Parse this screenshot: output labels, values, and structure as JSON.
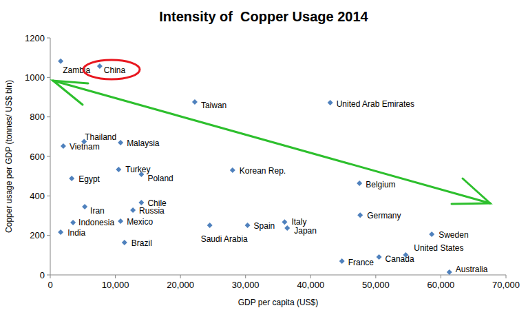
{
  "chart_data": {
    "type": "scatter",
    "title": "Intensity of  Copper Usage 2014",
    "x_label": "GDP per capita (US$)",
    "y_label": "Copper usage per GDP (tonnes/ US$ bln)",
    "color": "#4f81bd",
    "marker": "diamond",
    "grid": false,
    "xlim": [
      0,
      70000
    ],
    "ylim": [
      0,
      1200
    ],
    "xticks": [
      0,
      {
        "value": 10000,
        "label": "10,000"
      },
      {
        "value": 20000,
        "label": "20,000"
      },
      {
        "value": 30000,
        "label": "30,000"
      },
      {
        "value": 40000,
        "label": "40,000"
      },
      {
        "value": 50000,
        "label": "50,000"
      },
      {
        "value": 60000,
        "label": "60,000"
      },
      {
        "value": 70000,
        "label": "70,000"
      }
    ],
    "yticks": [
      0,
      200,
      400,
      600,
      800,
      1000,
      1200
    ],
    "point_labels": [
      "Zambia",
      "China",
      "Taiwan",
      "United Arab Emirates",
      "Thailand",
      "Vietnam",
      "Malaysia",
      "Turkey",
      "Egypt",
      "Poland",
      "Korean Rep.",
      "Belgium",
      "Iran",
      "Chile",
      "Russia",
      "Indonesia",
      "Mexico",
      "India",
      "Brazil",
      "Saudi Arabia",
      "Spain",
      "Italy",
      "Japan",
      "Germany",
      "Sweden",
      "United States",
      "Canada",
      "France",
      "Australia"
    ],
    "x": [
      1600,
      7600,
      22200,
      43000,
      5200,
      2000,
      10800,
      10500,
      3300,
      14000,
      28000,
      47500,
      5300,
      14000,
      12700,
      3500,
      10800,
      1600,
      11400,
      24500,
      30300,
      36000,
      36400,
      47600,
      58600,
      54600,
      50500,
      44800,
      61300
    ],
    "values": [
      1082,
      1057,
      876,
      872,
      675,
      652,
      670,
      534,
      488,
      509,
      530,
      464,
      345,
      366,
      328,
      265,
      272,
      216,
      164,
      251,
      251,
      268,
      237,
      303,
      206,
      101,
      91,
      70,
      14
    ]
  }
}
